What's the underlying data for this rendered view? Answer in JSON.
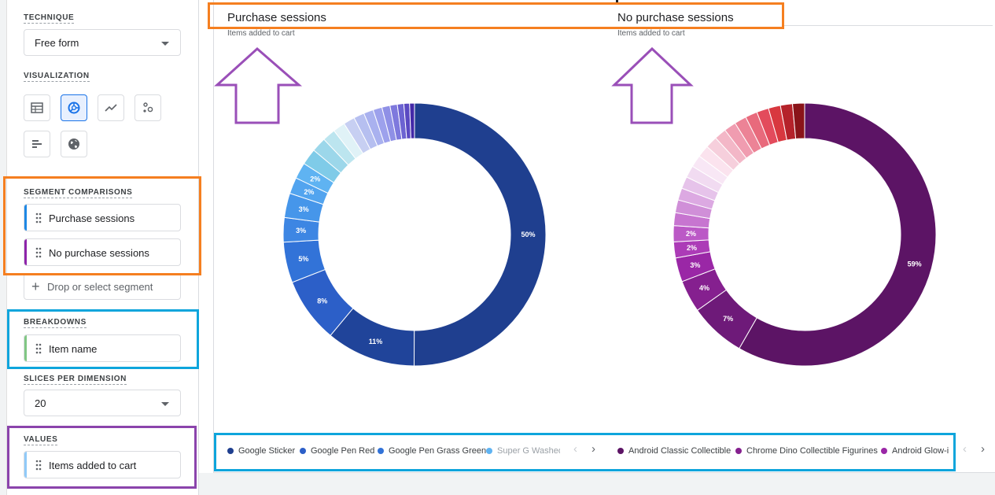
{
  "panel": {
    "technique": {
      "label": "TECHNIQUE",
      "value": "Free form"
    },
    "visualization": {
      "label": "VISUALIZATION",
      "buttons": [
        {
          "icon": "table-icon",
          "active": false
        },
        {
          "icon": "donut-chart-icon",
          "active": true
        },
        {
          "icon": "line-chart-icon",
          "active": false
        },
        {
          "icon": "scatter-plot-icon",
          "active": false
        },
        {
          "icon": "bar-chart-icon",
          "active": false
        },
        {
          "icon": "globe-icon",
          "active": false
        }
      ]
    },
    "segment_comparisons": {
      "label": "SEGMENT COMPARISONS",
      "items": [
        {
          "name": "Purchase sessions",
          "color": "#1e88e5"
        },
        {
          "name": "No purchase sessions",
          "color": "#8e24aa"
        }
      ],
      "drop_label": "Drop or select segment"
    },
    "breakdowns": {
      "label": "BREAKDOWNS",
      "items": [
        {
          "name": "Item name",
          "color": "#81c784"
        }
      ]
    },
    "slices": {
      "label": "SLICES PER DIMENSION",
      "value": "20"
    },
    "values": {
      "label": "VALUES",
      "items": [
        {
          "name": "Items added to cart",
          "color": "#90caf9"
        }
      ]
    }
  },
  "chart_data": [
    {
      "type": "pie",
      "title": "Purchase sessions",
      "subtitle": "Items added to cart",
      "values": [
        50,
        11,
        8,
        5,
        3,
        3,
        2,
        2,
        2,
        1.8,
        1.6,
        1.5,
        1.4,
        1.3,
        1.2,
        1.1,
        1.0,
        0.9,
        0.8,
        0.7,
        0.6
      ],
      "labels": [
        "50%",
        "11%",
        "8%",
        "5%",
        "3%",
        "3%",
        "2%",
        "2%",
        "",
        "",
        "",
        "",
        "",
        "",
        "",
        "",
        "",
        "",
        "",
        "",
        ""
      ],
      "colors": [
        "#1f3f8f",
        "#20449a",
        "#2c5fc8",
        "#3273d8",
        "#3d86e3",
        "#4696ea",
        "#52a4ef",
        "#5fb3f2",
        "#7fcbe8",
        "#9cd7ea",
        "#bce5ef",
        "#e0f2f7",
        "#c7cff2",
        "#b6bff0",
        "#a9b1ef",
        "#9da1ec",
        "#8f90e6",
        "#7e79dd",
        "#6c63d2",
        "#5a49c2",
        "#4329a8"
      ],
      "legend": [
        {
          "name": "Google Sticker",
          "color": "#1f3f8f"
        },
        {
          "name": "Google Pen Red",
          "color": "#2c5fc8"
        },
        {
          "name": "Google Pen Grass Green",
          "color": "#3273d8"
        },
        {
          "name": "Super G Washed",
          "color": "#5fb3f2"
        }
      ]
    },
    {
      "type": "pie",
      "title": "No purchase sessions",
      "subtitle": "Items added to cart",
      "values": [
        59,
        7,
        4,
        3,
        2,
        2,
        1.6,
        1.6,
        1.5,
        1.5,
        1.5,
        1.5,
        1.5,
        1.5,
        1.5,
        1.5,
        1.5,
        1.5,
        1.5,
        1.5,
        1.5,
        1.5
      ],
      "labels": [
        "59%",
        "7%",
        "4%",
        "3%",
        "2%",
        "2%",
        "",
        "",
        "",
        "",
        "",
        "",
        "",
        "",
        "",
        "",
        "",
        "",
        "",
        "",
        "",
        ""
      ],
      "colors": [
        "#5c1465",
        "#6e1a79",
        "#85208f",
        "#9a27a6",
        "#ac3bb7",
        "#bb59c6",
        "#c775d0",
        "#d08fd8",
        "#dca9e2",
        "#e6c3ea",
        "#f1dbf1",
        "#f8e7f5",
        "#fbe3ee",
        "#f6cfdc",
        "#f3b7c7",
        "#f09cb0",
        "#ec8396",
        "#e86a7c",
        "#e34b5c",
        "#d8383f",
        "#b5222a",
        "#8a1419"
      ],
      "legend": [
        {
          "name": "Android Classic Collectible",
          "color": "#5c1465"
        },
        {
          "name": "Chrome Dino Collectible Figurines",
          "color": "#85208f"
        },
        {
          "name": "Android Glow-i",
          "color": "#9a27a6"
        }
      ]
    }
  ],
  "pager": {
    "prev": "‹",
    "next": "›"
  }
}
